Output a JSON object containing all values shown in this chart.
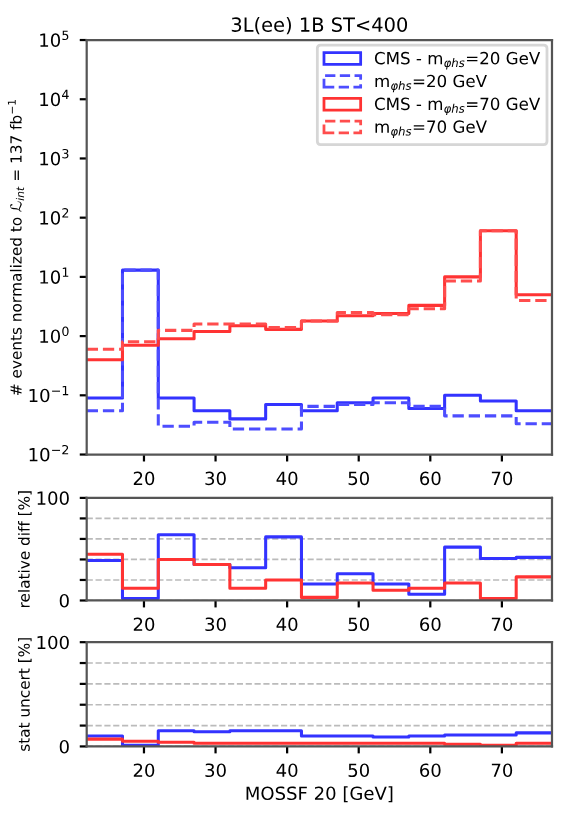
{
  "chart_data": [
    {
      "type": "histogram",
      "title": "3L(ee) 1B ST<400",
      "ylabel": "# events normalized to ℒ$_{int}$ = 137 fb$^{−1}$",
      "log": true,
      "legend": "top right",
      "bins": [
        12,
        17,
        22,
        27,
        32,
        37,
        42,
        47,
        52,
        57,
        62,
        67,
        72,
        77
      ],
      "xlim": [
        12,
        77
      ],
      "xticks": [
        20,
        30,
        40,
        50,
        60,
        70
      ],
      "ylim": [
        0.01,
        100000
      ],
      "yticks": [
        {
          "value": 0.01,
          "label": "10$^{−2}$"
        },
        {
          "value": 0.1,
          "label": "10$^{−1}$"
        },
        {
          "value": 1,
          "label": "10$^{0}$"
        },
        {
          "value": 10,
          "label": "10$^{1}$"
        },
        {
          "value": 100,
          "label": "10$^{2}$"
        },
        {
          "value": 1000,
          "label": "10$^{3}$"
        },
        {
          "value": 10000,
          "label": "10$^{4}$"
        },
        {
          "value": 100000,
          "label": "10$^{5}$"
        }
      ],
      "series": [
        {
          "name": "CMS - m$_{φhs}$=20 GeV",
          "color": "#3333ff",
          "line_style": "solid",
          "values": [
            0.09,
            13,
            0.09,
            0.055,
            0.04,
            0.07,
            0.055,
            0.075,
            0.09,
            0.06,
            0.1,
            0.08,
            0.055
          ]
        },
        {
          "name": "m$_{φhs}$=20 GeV",
          "color": "#4d4dff",
          "line_style": "dashed",
          "values": [
            0.055,
            13,
            0.03,
            0.035,
            0.027,
            0.027,
            0.065,
            0.07,
            0.075,
            0.065,
            0.045,
            0.045,
            0.033
          ]
        },
        {
          "name": "CMS - m$_{φhs}$=70 GeV",
          "color": "#ff3333",
          "line_style": "solid",
          "values": [
            0.4,
            0.7,
            0.9,
            1.2,
            1.5,
            1.3,
            1.8,
            2.2,
            2.4,
            3.3,
            10,
            60,
            5
          ]
        },
        {
          "name": "m$_{φhs}$=70 GeV",
          "color": "#ff4d4d",
          "line_style": "dashed",
          "values": [
            0.6,
            0.8,
            1.25,
            1.6,
            1.6,
            1.4,
            1.8,
            2.5,
            2.3,
            2.9,
            8.5,
            60,
            4
          ]
        }
      ]
    },
    {
      "type": "histogram",
      "ylabel": "relative diff [%]",
      "grid": "y",
      "bins": [
        12,
        17,
        22,
        27,
        32,
        37,
        42,
        47,
        52,
        57,
        62,
        67,
        72,
        77
      ],
      "xlim": [
        12,
        77
      ],
      "xticks": [
        20,
        30,
        40,
        50,
        60,
        70
      ],
      "ylim": [
        0,
        100
      ],
      "yticks": [
        0,
        {
          "value": 20,
          "label": null
        },
        {
          "value": 40,
          "label": null
        },
        {
          "value": 60,
          "label": null
        },
        {
          "value": 80,
          "label": null
        },
        100
      ],
      "series": [
        {
          "color": "#3333ff",
          "values": [
            39,
            2,
            64,
            35,
            32,
            62,
            16,
            26,
            16,
            6,
            52,
            41,
            42
          ]
        },
        {
          "color": "#ff3333",
          "values": [
            45,
            12,
            40,
            35,
            12,
            20,
            3,
            17,
            10,
            12,
            17,
            2,
            23
          ]
        }
      ]
    },
    {
      "type": "histogram",
      "ylabel": "stat uncert [%]",
      "xlabel": "MOSSF 20 [GeV]",
      "grid": "y",
      "bins": [
        12,
        17,
        22,
        27,
        32,
        37,
        42,
        47,
        52,
        57,
        62,
        67,
        72,
        77
      ],
      "xlim": [
        12,
        77
      ],
      "xticks": [
        20,
        30,
        40,
        50,
        60,
        70
      ],
      "ylim": [
        0,
        100
      ],
      "yticks": [
        0,
        {
          "value": 20,
          "label": null
        },
        {
          "value": 40,
          "label": null
        },
        {
          "value": 60,
          "label": null
        },
        {
          "value": 80,
          "label": null
        },
        100
      ],
      "series": [
        {
          "color": "#3333ff",
          "values": [
            10,
            1,
            15,
            14,
            15,
            15,
            10,
            10,
            9,
            10,
            11,
            11,
            13
          ]
        },
        {
          "color": "#ff3333",
          "values": [
            7,
            5,
            4,
            3,
            3,
            3,
            3,
            3,
            3,
            3,
            2,
            1,
            3
          ]
        }
      ]
    }
  ]
}
